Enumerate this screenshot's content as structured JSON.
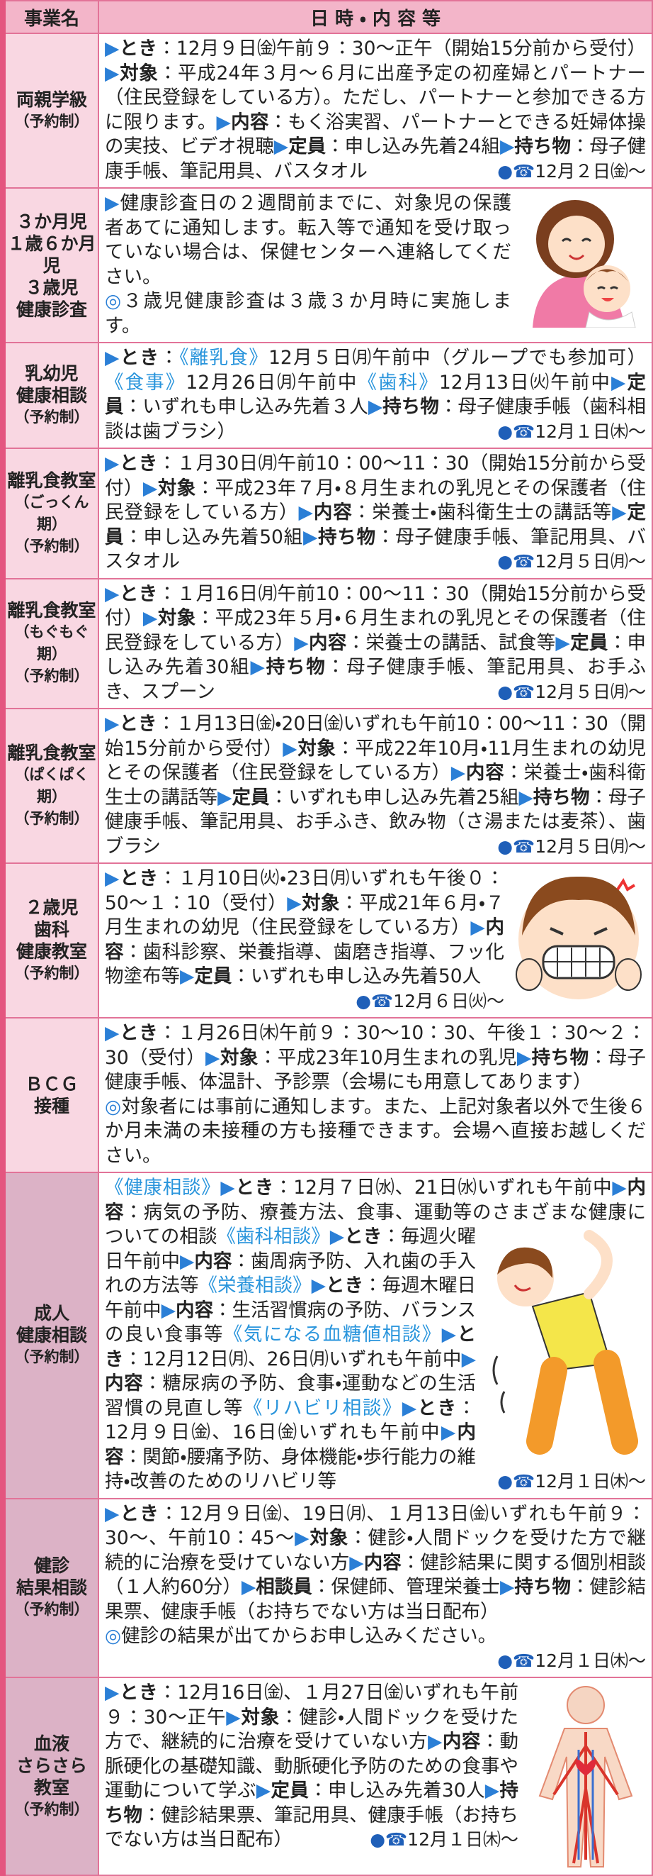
{
  "header": {
    "name": "事業名",
    "content": "日 時 ・ 内 容 等"
  },
  "rows": [
    {
      "name": [
        "両親学級",
        "（予約制）"
      ],
      "content": [
        "とき",
        "：12月９日㈮午前９：30～正午（開始15分前から受付）",
        "対象",
        "：平成24年３月～６月に出産予定の初産婦とパートナー（住民登録をしている方）。ただし、パートナーと参加できる方に限ります。",
        "内容",
        "：もく浴実習、パートナーとできる妊婦体操の実技、ビデオ視聴",
        "定員",
        "：申し込み先着24組",
        "持ち物",
        "：母子健康手帳、筆記用具、バスタオル"
      ],
      "contact": "12月２日㈮～"
    },
    {
      "name": [
        "３か月児",
        "１歳６か月児",
        "３歳児",
        "健康診査"
      ],
      "content": [
        "健康診査日の２週間前までに、対象児の保護者あてに通知します。転入等で通知を受け取っていない場合は、保健センターへ連絡してください。",
        "３歳児健康診査は３歳３か月時に実施します。"
      ]
    },
    {
      "name": [
        "乳幼児",
        "健康相談",
        "（予約制）"
      ],
      "content": [
        "とき",
        "：",
        "《離乳食》",
        "12月５日㈪午前中（グループでも参加可）",
        "《食事》",
        "12月26日㈪午前中",
        "《歯科》",
        "12月13日㈫午前中",
        "定員",
        "：いずれも申し込み先着３人",
        "持ち物",
        "：母子健康手帳（歯科相談は歯ブラシ）"
      ],
      "contact": "12月１日㈭～"
    },
    {
      "name": [
        "離乳食教室",
        "（ごっくん期）",
        "（予約制）"
      ],
      "content": [
        "とき",
        "：１月30日㈪午前10：00～11：30（開始15分前から受付）",
        "対象",
        "：平成23年７月・８月生まれの乳児とその保護者（住民登録をしている方）",
        "内容",
        "：栄養士・歯科衛生士の講話等",
        "定員",
        "：申し込み先着50組",
        "持ち物",
        "：母子健康手帳、筆記用具、バスタオル"
      ],
      "contact": "12月５日㈪～"
    },
    {
      "name": [
        "離乳食教室",
        "（もぐもぐ期）",
        "（予約制）"
      ],
      "content": [
        "とき",
        "：１月16日㈪午前10：00～11：30（開始15分前から受付）",
        "対象",
        "：平成23年５月・６月生まれの乳児とその保護者（住民登録をしている方）",
        "内容",
        "：栄養士の講話、試食等",
        "定員",
        "：申し込み先着30組",
        "持ち物",
        "：母子健康手帳、筆記用具、お手ふき、スプーン"
      ],
      "contact": "12月５日㈪～"
    },
    {
      "name": [
        "離乳食教室",
        "（ぱくぱく期）",
        "（予約制）"
      ],
      "content": [
        "とき",
        "：１月13日㈮・20日㈮いずれも午前10：00～11：30（開始15分前から受付）",
        "対象",
        "：平成22年10月・11月生まれの幼児とその保護者（住民登録をしている方）",
        "内容",
        "：栄養士・歯科衛生士の講話等",
        "定員",
        "：いずれも申し込み先着25組",
        "持ち物",
        "：母子健康手帳、筆記用具、お手ふき、飲み物（さ湯または麦茶）、歯ブラシ"
      ],
      "contact": "12月５日㈪～"
    },
    {
      "name": [
        "２歳児",
        "歯科",
        "健康教室",
        "（予約制）"
      ],
      "content": [
        "とき",
        "：１月10日㈫・23日㈪いずれも午後０：50～１：10（受付）",
        "対象",
        "：平成21年６月・７月生まれの幼児（住民登録をしている方）",
        "内容",
        "：歯科診察、栄養指導、歯磨き指導、フッ化物塗布等",
        "定員",
        "：いずれも申し込み先着50人"
      ],
      "contact": "12月６日㈫～"
    },
    {
      "name": [
        "ＢＣＧ",
        "接種"
      ],
      "content": [
        "とき",
        "：１月26日㈭午前９：30～10：30、午後１：30～２：30（受付）",
        "対象",
        "：平成23年10月生まれの乳児",
        "持ち物",
        "：母子健康手帳、体温計、予診票（会場にも用意してあります）",
        "対象者には事前に通知します。また、上記対象者以外で生後６か月未満の未接種の方も接種できます。会場へ直接お越しください。"
      ]
    },
    {
      "name": [
        "成人",
        "健康相談",
        "（予約制）"
      ],
      "content": [
        "《健康相談》",
        "とき",
        "：12月７日㈬、21日㈬いずれも午前中",
        "内容",
        "：病気の予防、療養方法、食事、運動等のさまざまな健康についての相談",
        "《歯科相談》",
        "とき",
        "：毎週火曜日午前中",
        "内容",
        "：歯周病予防、入れ歯の手入れの方法等",
        "《栄養相談》",
        "とき",
        "：毎週木曜日午前中",
        "内容",
        "：生活習慣病の予防、バランスの良い食事等",
        "《気になる血糖値相談》",
        "とき",
        "：12月12日㈪、26日㈪いずれも午前中",
        "内容",
        "：糖尿病の予防、食事・運動などの生活習慣の見直し等",
        "《リハビリ相談》",
        "とき",
        "：12月９日㈮、16日㈮いずれも午前中",
        "内容",
        "：関節・腰痛予防、身体機能・歩行能力の維持・改善のためのリハビリ等"
      ],
      "contact": "12月１日㈭～"
    },
    {
      "name": [
        "健診",
        "結果相談",
        "（予約制）"
      ],
      "content": [
        "とき",
        "：12月９日㈮、19日㈪、１月13日㈮いずれも午前９：30～、午前10：45～",
        "対象",
        "：健診・人間ドックを受けた方で継続的に治療を受けていない方",
        "内容",
        "：健診結果に関する個別相談（１人約60分）",
        "相談員",
        "：保健師、管理栄養士",
        "持ち物",
        "：健診結果票、健康手帳（お持ちでない方は当日配布）",
        "健診の結果が出てからお申し込みください。"
      ],
      "contact": "12月１日㈭～"
    },
    {
      "name": [
        "血液",
        "さらさら",
        "教室",
        "（予約制）"
      ],
      "content": [
        "とき",
        "：12月16日㈮、１月27日㈮いずれも午前９：30～正午",
        "対象",
        "：健診・人間ドックを受けた方で、継続的に治療を受けていない方",
        "内容",
        "：動脈硬化の基礎知識、動脈硬化予防のための食事や運動について学ぶ",
        "定員",
        "：申し込み先着30人",
        "持ち物",
        "：健診結果票、筆記用具、健康手帳（お持ちでない方は当日配布）"
      ],
      "contact": "12月１日㈭～"
    }
  ]
}
